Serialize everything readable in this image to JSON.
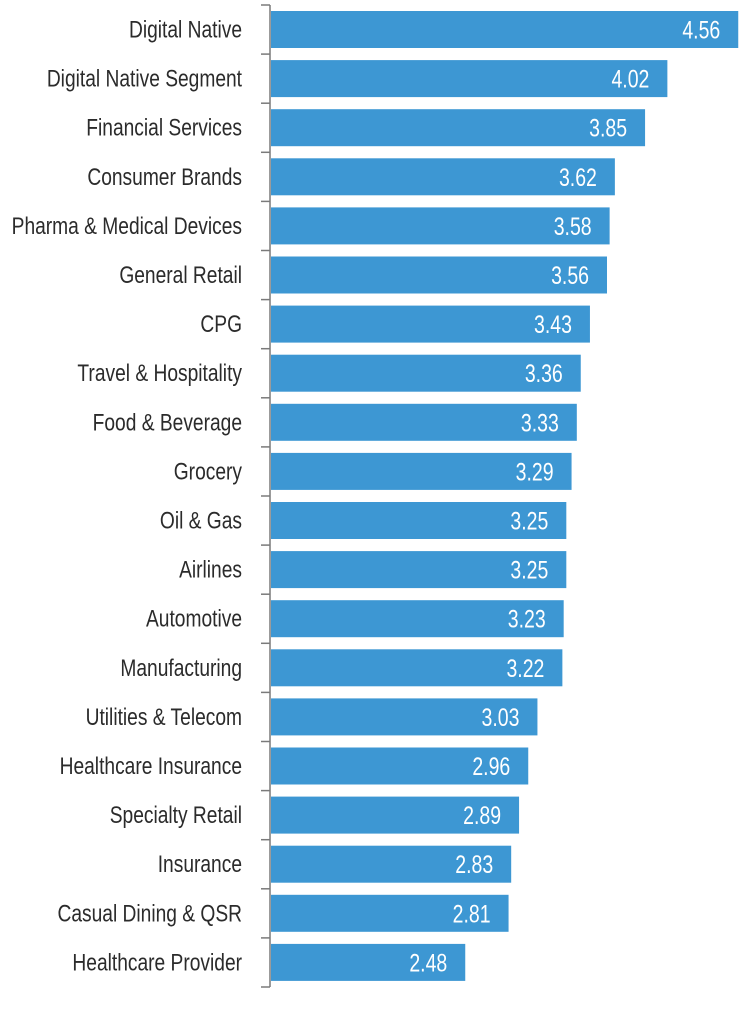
{
  "chart_data": {
    "type": "bar",
    "orientation": "horizontal",
    "categories": [
      "Digital Native",
      "Digital Native Segment",
      "Financial Services",
      "Consumer Brands",
      "Pharma & Medical Devices",
      "General Retail",
      "CPG",
      "Travel & Hospitality",
      "Food & Beverage",
      "Grocery",
      "Oil & Gas",
      "Airlines",
      "Automotive",
      "Manufacturing",
      "Utilities & Telecom",
      "Healthcare Insurance",
      "Specialty Retail",
      "Insurance",
      "Casual Dining & QSR",
      "Healthcare Provider"
    ],
    "values": [
      4.56,
      4.02,
      3.85,
      3.62,
      3.58,
      3.56,
      3.43,
      3.36,
      3.33,
      3.29,
      3.25,
      3.25,
      3.23,
      3.22,
      3.03,
      2.96,
      2.89,
      2.83,
      2.81,
      2.48
    ],
    "value_labels": [
      "4.56",
      "4.02",
      "3.85",
      "3.62",
      "3.58",
      "3.56",
      "3.43",
      "3.36",
      "3.33",
      "3.29",
      "3.25",
      "3.25",
      "3.23",
      "3.22",
      "3.03",
      "2.96",
      "2.89",
      "2.83",
      "2.81",
      "2.48"
    ],
    "xlim": [
      1,
      4.6
    ],
    "grid": false,
    "data_labels": "inside-end",
    "bar_color": "#3d97d3",
    "title": "",
    "xlabel": "",
    "ylabel": ""
  }
}
